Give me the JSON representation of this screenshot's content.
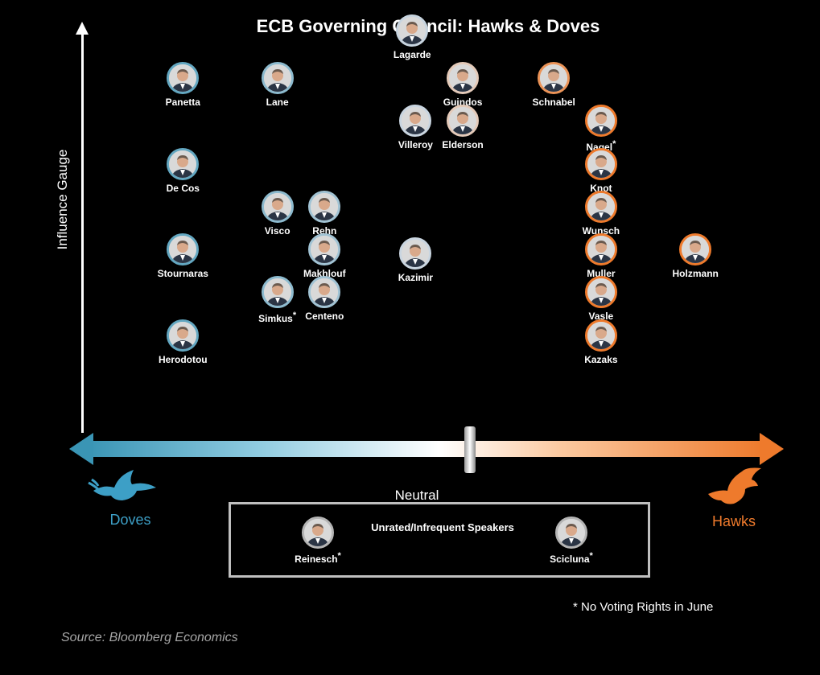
{
  "chart_data": {
    "type": "scatter",
    "title": "ECB Governing Council: Hawks & Doves",
    "ylabel": "Influence Gauge",
    "x_labels": {
      "left": "Doves",
      "center": "Neutral",
      "right": "Hawks"
    },
    "legend_box_title": "Unrated/Infrequent Speakers",
    "footnote_marker": "*",
    "footnote": "No Voting Rights in June",
    "source": "Source: Bloomberg Economics",
    "colors": {
      "doves": "#3a95b5",
      "hawks": "#ee7a2c",
      "neutral": "#ffffff"
    },
    "members": [
      {
        "name": "Lagarde",
        "x": 0.48,
        "y": 9.3,
        "star": false
      },
      {
        "name": "Panetta",
        "x": 0.14,
        "y": 8.2,
        "star": false
      },
      {
        "name": "Lane",
        "x": 0.28,
        "y": 8.2,
        "star": false
      },
      {
        "name": "Guindos",
        "x": 0.555,
        "y": 8.2,
        "star": false
      },
      {
        "name": "Schnabel",
        "x": 0.69,
        "y": 8.2,
        "star": false
      },
      {
        "name": "Villeroy",
        "x": 0.485,
        "y": 7.2,
        "star": false
      },
      {
        "name": "Elderson",
        "x": 0.555,
        "y": 7.2,
        "star": false
      },
      {
        "name": "Nagel",
        "x": 0.76,
        "y": 7.2,
        "star": true
      },
      {
        "name": "De Cos",
        "x": 0.14,
        "y": 6.2,
        "star": false
      },
      {
        "name": "Knot",
        "x": 0.76,
        "y": 6.2,
        "star": false
      },
      {
        "name": "Visco",
        "x": 0.28,
        "y": 5.2,
        "star": false
      },
      {
        "name": "Rehn",
        "x": 0.35,
        "y": 5.2,
        "star": false
      },
      {
        "name": "Wunsch",
        "x": 0.76,
        "y": 5.2,
        "star": false
      },
      {
        "name": "Stournaras",
        "x": 0.14,
        "y": 4.2,
        "star": false
      },
      {
        "name": "Makhlouf",
        "x": 0.35,
        "y": 4.2,
        "star": false
      },
      {
        "name": "Kazimir",
        "x": 0.485,
        "y": 4.1,
        "star": false
      },
      {
        "name": "Muller",
        "x": 0.76,
        "y": 4.2,
        "star": false
      },
      {
        "name": "Holzmann",
        "x": 0.9,
        "y": 4.2,
        "star": false
      },
      {
        "name": "Simkus",
        "x": 0.28,
        "y": 3.2,
        "star": true
      },
      {
        "name": "Centeno",
        "x": 0.35,
        "y": 3.2,
        "star": false
      },
      {
        "name": "Vasle",
        "x": 0.76,
        "y": 3.2,
        "star": false
      },
      {
        "name": "Herodotou",
        "x": 0.14,
        "y": 2.2,
        "star": false
      },
      {
        "name": "Kazaks",
        "x": 0.76,
        "y": 2.2,
        "star": false
      }
    ],
    "unrated": [
      {
        "name": "Reinesch",
        "star": true
      },
      {
        "name": "Scicluna",
        "star": true
      }
    ]
  }
}
